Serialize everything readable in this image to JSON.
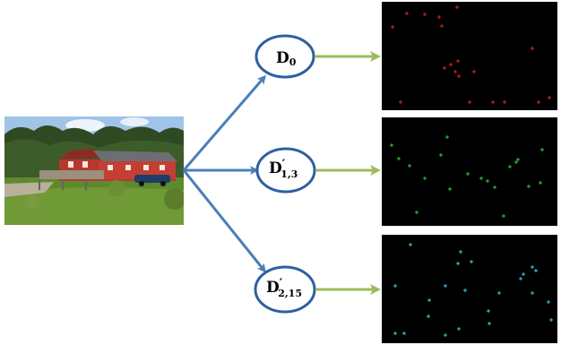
{
  "photo": {
    "description_icon": "house-photo"
  },
  "nodes": [
    {
      "main": "D",
      "sub": "0",
      "prime": false
    },
    {
      "main": "D",
      "sub": "1,3",
      "prime": true
    },
    {
      "main": "D",
      "sub": "2,15",
      "prime": true
    }
  ],
  "colors": {
    "arrow_blue": "#4a7ebb",
    "arrow_green": "#9bbb59",
    "node_stroke": "#2f5fa0",
    "panel_bg": "#000000",
    "points_red": "#e0261c",
    "points_green": "#2ecc40",
    "points_cyan": "#3fc8e8"
  },
  "panels": [
    {
      "color_key": "points_red",
      "points": [
        [
          12,
          28
        ],
        [
          28,
          13
        ],
        [
          48,
          14
        ],
        [
          64,
          17
        ],
        [
          67,
          27
        ],
        [
          84,
          6
        ],
        [
          70,
          74
        ],
        [
          77,
          70
        ],
        [
          82,
          78
        ],
        [
          85,
          66
        ],
        [
          86,
          83
        ],
        [
          103,
          78
        ],
        [
          21,
          112
        ],
        [
          98,
          112
        ],
        [
          124,
          112
        ],
        [
          137,
          112
        ],
        [
          168,
          52
        ],
        [
          175,
          112
        ],
        [
          187,
          107
        ]
      ]
    },
    {
      "color_key": "points_green",
      "points": [
        [
          11,
          31
        ],
        [
          19,
          46
        ],
        [
          31,
          54
        ],
        [
          48,
          68
        ],
        [
          73,
          22
        ],
        [
          66,
          42
        ],
        [
          76,
          80
        ],
        [
          96,
          63
        ],
        [
          111,
          68
        ],
        [
          118,
          71
        ],
        [
          126,
          78
        ],
        [
          143,
          55
        ],
        [
          150,
          50
        ],
        [
          152,
          47
        ],
        [
          164,
          77
        ],
        [
          179,
          36
        ],
        [
          177,
          73
        ],
        [
          39,
          106
        ],
        [
          136,
          110
        ]
      ]
    },
    {
      "color_key": "points_cyan",
      "points": [
        [
          32,
          11
        ],
        [
          88,
          19
        ],
        [
          85,
          32
        ],
        [
          100,
          30
        ],
        [
          15,
          57
        ],
        [
          71,
          57
        ],
        [
          53,
          73
        ],
        [
          93,
          62
        ],
        [
          119,
          85
        ],
        [
          131,
          65
        ],
        [
          155,
          49
        ],
        [
          158,
          44
        ],
        [
          168,
          36
        ],
        [
          172,
          40
        ],
        [
          168,
          65
        ],
        [
          186,
          75
        ],
        [
          189,
          95
        ],
        [
          120,
          99
        ],
        [
          52,
          91
        ],
        [
          86,
          105
        ],
        [
          71,
          112
        ],
        [
          15,
          110
        ],
        [
          25,
          110
        ]
      ]
    }
  ]
}
